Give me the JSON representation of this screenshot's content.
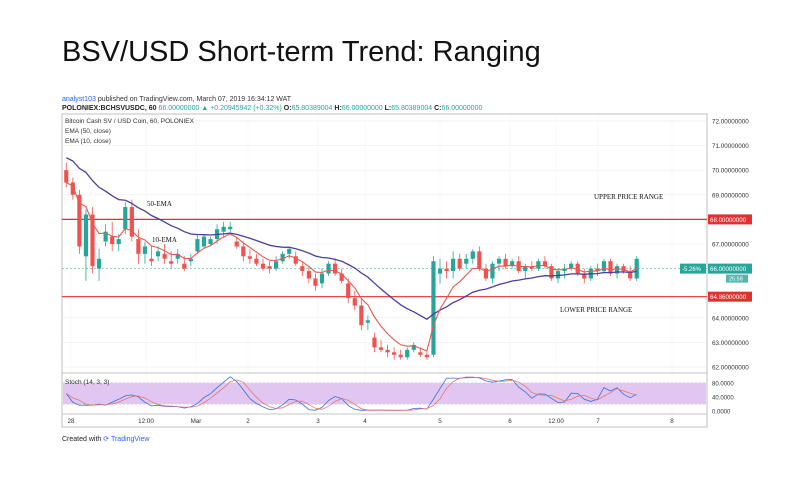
{
  "header": {
    "title": "BSV/USD Short-term Trend: Ranging",
    "author": "analyst103",
    "published": "published on TradingView.com, March 07, 2019 16:34:12 WAT"
  },
  "ohlc": {
    "symbol": "POLONIEX:BCHSVUSDC, 60",
    "open": "66.00000000",
    "change": "▲ +0.20945942 (+0.32%)",
    "o_label": "O:",
    "o_val": "65.80389004",
    "h_label": "H:",
    "h_val": "66.00000000",
    "l_label": "L:",
    "l_val": "65.80389004",
    "c_label": "C:",
    "c_val": "66.00000000"
  },
  "legend": {
    "name": "Bitcoin Cash SV / USD Coin, 60, POLONIEX",
    "ema1": "EMA (50, close)",
    "ema2": "EMA (10, close)"
  },
  "footer": {
    "created": "Created with",
    "brand": "TradingView"
  },
  "chart_data": {
    "type": "candlestick",
    "yticks": [
      "72.00000000",
      "71.00000000",
      "70.00000000",
      "69.00000000",
      "67.00000000",
      "64.00000000",
      "63.00000000",
      "62.00000000"
    ],
    "ylim": [
      61.8,
      72.2
    ],
    "xticks": [
      "28",
      "12:00",
      "Mar",
      "2",
      "3",
      "4",
      "5",
      "6",
      "12:00",
      "7",
      "8"
    ],
    "levels": [
      {
        "label": "68.00000000",
        "value": 68.0
      },
      {
        "label": "64.86000000",
        "value": 64.86
      }
    ],
    "current": {
      "change": "-5.26%",
      "price": "66.00000000",
      "time": "25:58",
      "value": 66.0
    },
    "annotations": {
      "ema50": "50-EMA",
      "ema10": "10-EMA",
      "upper": "UPPER PRICE RANGE",
      "lower": "LOWER PRICE RANGE"
    },
    "candles": [
      [
        70.0,
        70.3,
        69.3,
        69.5
      ],
      [
        69.5,
        69.7,
        68.8,
        69.0
      ],
      [
        69.0,
        69.2,
        66.6,
        66.9
      ],
      [
        66.5,
        68.4,
        65.5,
        68.2
      ],
      [
        68.2,
        68.5,
        65.8,
        66.1
      ],
      [
        66.0,
        66.8,
        65.5,
        66.4
      ],
      [
        67.1,
        67.8,
        66.9,
        67.5
      ],
      [
        67.3,
        67.9,
        66.7,
        67.0
      ],
      [
        67.0,
        67.4,
        66.7,
        67.2
      ],
      [
        67.6,
        68.7,
        67.4,
        68.5
      ],
      [
        68.5,
        68.8,
        67.1,
        67.3
      ],
      [
        67.2,
        67.6,
        66.2,
        66.6
      ],
      [
        66.6,
        67.1,
        66.2,
        66.9
      ],
      [
        66.4,
        66.9,
        66.1,
        66.3
      ],
      [
        66.5,
        66.9,
        66.3,
        66.7
      ],
      [
        66.6,
        67.0,
        66.2,
        66.4
      ],
      [
        66.3,
        66.7,
        66.0,
        66.2
      ],
      [
        66.4,
        66.8,
        66.2,
        66.6
      ],
      [
        66.2,
        66.5,
        65.9,
        66.0
      ],
      [
        66.3,
        66.6,
        66.1,
        66.4
      ],
      [
        66.7,
        67.4,
        66.6,
        67.2
      ],
      [
        66.9,
        67.4,
        66.8,
        67.3
      ],
      [
        67.0,
        67.3,
        66.9,
        67.2
      ],
      [
        67.2,
        67.8,
        67.0,
        67.6
      ],
      [
        67.5,
        67.9,
        67.3,
        67.7
      ],
      [
        67.6,
        67.9,
        67.4,
        67.7
      ],
      [
        67.1,
        67.3,
        66.8,
        66.9
      ],
      [
        66.9,
        67.1,
        66.3,
        66.5
      ],
      [
        66.5,
        66.8,
        66.2,
        66.4
      ],
      [
        66.4,
        66.6,
        66.1,
        66.2
      ],
      [
        66.2,
        66.4,
        65.9,
        66.0
      ],
      [
        66.1,
        66.3,
        65.8,
        66.0
      ],
      [
        66.0,
        66.5,
        65.9,
        66.3
      ],
      [
        66.3,
        66.7,
        66.2,
        66.6
      ],
      [
        66.6,
        66.9,
        66.4,
        66.8
      ],
      [
        66.5,
        66.7,
        66.1,
        66.2
      ],
      [
        66.1,
        66.3,
        65.7,
        65.9
      ],
      [
        65.9,
        66.1,
        65.4,
        65.6
      ],
      [
        65.6,
        65.8,
        65.1,
        65.3
      ],
      [
        65.4,
        66.0,
        65.2,
        65.8
      ],
      [
        65.8,
        66.3,
        65.7,
        66.2
      ],
      [
        66.2,
        66.4,
        65.7,
        65.8
      ],
      [
        65.8,
        66.0,
        65.4,
        65.5
      ],
      [
        65.4,
        65.6,
        64.6,
        64.8
      ],
      [
        64.8,
        65.1,
        64.3,
        64.5
      ],
      [
        64.5,
        64.8,
        63.5,
        63.7
      ],
      [
        63.8,
        64.1,
        63.5,
        63.9
      ],
      [
        63.2,
        63.4,
        62.6,
        62.8
      ],
      [
        62.8,
        63.1,
        62.6,
        62.7
      ],
      [
        62.7,
        62.9,
        62.4,
        62.6
      ],
      [
        62.6,
        62.8,
        62.3,
        62.5
      ],
      [
        62.5,
        62.7,
        62.3,
        62.4
      ],
      [
        62.4,
        62.8,
        62.3,
        62.7
      ],
      [
        62.7,
        63.0,
        62.6,
        62.9
      ],
      [
        62.6,
        62.8,
        62.4,
        62.5
      ],
      [
        62.5,
        62.7,
        62.3,
        62.4
      ],
      [
        62.5,
        66.5,
        62.4,
        66.3
      ],
      [
        65.8,
        66.4,
        65.4,
        66.0
      ],
      [
        66.0,
        66.3,
        65.6,
        65.9
      ],
      [
        65.9,
        66.7,
        65.6,
        66.4
      ],
      [
        66.4,
        66.6,
        65.9,
        66.0
      ],
      [
        66.2,
        66.6,
        66.0,
        66.4
      ],
      [
        66.4,
        66.8,
        66.2,
        66.7
      ],
      [
        66.7,
        66.9,
        65.9,
        66.0
      ],
      [
        66.0,
        66.2,
        65.5,
        65.6
      ],
      [
        65.6,
        66.3,
        65.4,
        66.2
      ],
      [
        66.2,
        66.5,
        65.9,
        66.4
      ],
      [
        66.4,
        66.6,
        66.0,
        66.1
      ],
      [
        66.1,
        66.4,
        66.0,
        66.3
      ],
      [
        66.3,
        66.5,
        65.8,
        65.9
      ],
      [
        65.9,
        66.2,
        65.6,
        66.1
      ],
      [
        66.1,
        66.3,
        65.9,
        66.0
      ],
      [
        66.0,
        66.4,
        65.9,
        66.3
      ],
      [
        66.3,
        66.5,
        66.0,
        66.1
      ],
      [
        66.1,
        66.2,
        65.5,
        65.6
      ],
      [
        65.6,
        66.0,
        65.4,
        65.9
      ],
      [
        65.9,
        66.2,
        65.6,
        66.0
      ],
      [
        66.0,
        66.3,
        65.9,
        66.2
      ],
      [
        66.2,
        66.3,
        65.7,
        65.8
      ],
      [
        65.8,
        66.0,
        65.4,
        65.6
      ],
      [
        65.6,
        66.1,
        65.5,
        66.0
      ],
      [
        66.0,
        66.2,
        65.7,
        65.9
      ],
      [
        65.9,
        66.4,
        65.8,
        66.3
      ],
      [
        66.3,
        66.4,
        65.7,
        65.8
      ],
      [
        65.8,
        66.2,
        65.6,
        66.1
      ],
      [
        66.1,
        66.2,
        65.8,
        65.9
      ],
      [
        65.9,
        66.1,
        65.5,
        65.6
      ],
      [
        65.6,
        66.5,
        65.5,
        66.4
      ]
    ],
    "stoch": {
      "label": "Stoch (14, 3, 3)",
      "yticks": [
        "80.0000",
        "40.0000",
        "0.0000"
      ],
      "upper": 80,
      "lower": 20
    }
  }
}
